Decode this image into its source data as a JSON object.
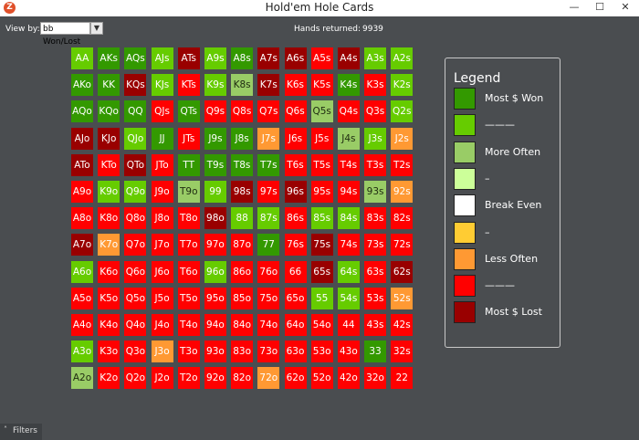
{
  "window": {
    "title": "Hold'em Hole Cards",
    "app_icon": "Z",
    "min_glyph": "—",
    "max_glyph": "☐",
    "close_glyph": "✕"
  },
  "toolbar": {
    "view_by_label": "View by:",
    "view_by_value": "bb Won/Lost",
    "view_by_arrow": "▼",
    "hands_label": "Hands returned:",
    "hands_value": "9939"
  },
  "legend": {
    "title": "Legend",
    "items": [
      {
        "label": "Most $ Won",
        "color": "#339900"
      },
      {
        "label": "———",
        "color": "#66cc00"
      },
      {
        "label": "More Often",
        "color": "#99cc66"
      },
      {
        "label": "–",
        "color": "#ccff99"
      },
      {
        "label": "Break Even",
        "color": "#ffffff"
      },
      {
        "label": "–",
        "color": "#ffcc33"
      },
      {
        "label": "Less Often",
        "color": "#ff9933"
      },
      {
        "label": "———",
        "color": "#ff0000"
      },
      {
        "label": "Most $ Lost",
        "color": "#990000"
      }
    ]
  },
  "palette": {
    "DG": "#339900",
    "G": "#66cc00",
    "LG": "#99cc66",
    "O": "#ff9933",
    "R": "#ff0000",
    "DR": "#990000"
  },
  "grid": [
    [
      [
        "AA",
        "G"
      ],
      [
        "AKs",
        "DG"
      ],
      [
        "AQs",
        "DG"
      ],
      [
        "AJs",
        "G"
      ],
      [
        "ATs",
        "DR"
      ],
      [
        "A9s",
        "G"
      ],
      [
        "A8s",
        "DG"
      ],
      [
        "A7s",
        "DR"
      ],
      [
        "A6s",
        "DR"
      ],
      [
        "A5s",
        "R"
      ],
      [
        "A4s",
        "DR"
      ],
      [
        "A3s",
        "G"
      ],
      [
        "A2s",
        "G"
      ]
    ],
    [
      [
        "AKo",
        "DG"
      ],
      [
        "KK",
        "DG"
      ],
      [
        "KQs",
        "DR"
      ],
      [
        "KJs",
        "G"
      ],
      [
        "KTs",
        "R"
      ],
      [
        "K9s",
        "G"
      ],
      [
        "K8s",
        "LG"
      ],
      [
        "K7s",
        "DR"
      ],
      [
        "K6s",
        "R"
      ],
      [
        "K5s",
        "R"
      ],
      [
        "K4s",
        "DG"
      ],
      [
        "K3s",
        "R"
      ],
      [
        "K2s",
        "G"
      ]
    ],
    [
      [
        "AQo",
        "DG"
      ],
      [
        "KQo",
        "DG"
      ],
      [
        "QQ",
        "DG"
      ],
      [
        "QJs",
        "R"
      ],
      [
        "QTs",
        "DG"
      ],
      [
        "Q9s",
        "R"
      ],
      [
        "Q8s",
        "R"
      ],
      [
        "Q7s",
        "R"
      ],
      [
        "Q6s",
        "R"
      ],
      [
        "Q5s",
        "LG"
      ],
      [
        "Q4s",
        "R"
      ],
      [
        "Q3s",
        "R"
      ],
      [
        "Q2s",
        "G"
      ]
    ],
    [
      [
        "AJo",
        "DR"
      ],
      [
        "KJo",
        "DR"
      ],
      [
        "QJo",
        "G"
      ],
      [
        "JJ",
        "DG"
      ],
      [
        "JTs",
        "R"
      ],
      [
        "J9s",
        "DG"
      ],
      [
        "J8s",
        "DG"
      ],
      [
        "J7s",
        "O"
      ],
      [
        "J6s",
        "R"
      ],
      [
        "J5s",
        "R"
      ],
      [
        "J4s",
        "LG"
      ],
      [
        "J3s",
        "G"
      ],
      [
        "J2s",
        "O"
      ]
    ],
    [
      [
        "ATo",
        "DR"
      ],
      [
        "KTo",
        "R"
      ],
      [
        "QTo",
        "DR"
      ],
      [
        "JTo",
        "R"
      ],
      [
        "TT",
        "DG"
      ],
      [
        "T9s",
        "DG"
      ],
      [
        "T8s",
        "DG"
      ],
      [
        "T7s",
        "DG"
      ],
      [
        "T6s",
        "R"
      ],
      [
        "T5s",
        "R"
      ],
      [
        "T4s",
        "R"
      ],
      [
        "T3s",
        "R"
      ],
      [
        "T2s",
        "R"
      ]
    ],
    [
      [
        "A9o",
        "R"
      ],
      [
        "K9o",
        "G"
      ],
      [
        "Q9o",
        "G"
      ],
      [
        "J9o",
        "R"
      ],
      [
        "T9o",
        "LG"
      ],
      [
        "99",
        "G"
      ],
      [
        "98s",
        "DR"
      ],
      [
        "97s",
        "R"
      ],
      [
        "96s",
        "DR"
      ],
      [
        "95s",
        "R"
      ],
      [
        "94s",
        "R"
      ],
      [
        "93s",
        "LG"
      ],
      [
        "92s",
        "O"
      ]
    ],
    [
      [
        "A8o",
        "R"
      ],
      [
        "K8o",
        "R"
      ],
      [
        "Q8o",
        "R"
      ],
      [
        "J8o",
        "R"
      ],
      [
        "T8o",
        "R"
      ],
      [
        "98o",
        "DR"
      ],
      [
        "88",
        "G"
      ],
      [
        "87s",
        "G"
      ],
      [
        "86s",
        "R"
      ],
      [
        "85s",
        "G"
      ],
      [
        "84s",
        "G"
      ],
      [
        "83s",
        "R"
      ],
      [
        "82s",
        "R"
      ]
    ],
    [
      [
        "A7o",
        "DR"
      ],
      [
        "K7o",
        "O"
      ],
      [
        "Q7o",
        "R"
      ],
      [
        "J7o",
        "R"
      ],
      [
        "T7o",
        "R"
      ],
      [
        "97o",
        "R"
      ],
      [
        "87o",
        "R"
      ],
      [
        "77",
        "DG"
      ],
      [
        "76s",
        "R"
      ],
      [
        "75s",
        "DR"
      ],
      [
        "74s",
        "R"
      ],
      [
        "73s",
        "R"
      ],
      [
        "72s",
        "R"
      ]
    ],
    [
      [
        "A6o",
        "G"
      ],
      [
        "K6o",
        "R"
      ],
      [
        "Q6o",
        "R"
      ],
      [
        "J6o",
        "R"
      ],
      [
        "T6o",
        "R"
      ],
      [
        "96o",
        "G"
      ],
      [
        "86o",
        "R"
      ],
      [
        "76o",
        "R"
      ],
      [
        "66",
        "R"
      ],
      [
        "65s",
        "DR"
      ],
      [
        "64s",
        "G"
      ],
      [
        "63s",
        "R"
      ],
      [
        "62s",
        "DR"
      ]
    ],
    [
      [
        "A5o",
        "R"
      ],
      [
        "K5o",
        "R"
      ],
      [
        "Q5o",
        "R"
      ],
      [
        "J5o",
        "R"
      ],
      [
        "T5o",
        "R"
      ],
      [
        "95o",
        "R"
      ],
      [
        "85o",
        "R"
      ],
      [
        "75o",
        "R"
      ],
      [
        "65o",
        "R"
      ],
      [
        "55",
        "G"
      ],
      [
        "54s",
        "G"
      ],
      [
        "53s",
        "R"
      ],
      [
        "52s",
        "O"
      ]
    ],
    [
      [
        "A4o",
        "R"
      ],
      [
        "K4o",
        "R"
      ],
      [
        "Q4o",
        "R"
      ],
      [
        "J4o",
        "R"
      ],
      [
        "T4o",
        "R"
      ],
      [
        "94o",
        "R"
      ],
      [
        "84o",
        "R"
      ],
      [
        "74o",
        "R"
      ],
      [
        "64o",
        "R"
      ],
      [
        "54o",
        "R"
      ],
      [
        "44",
        "R"
      ],
      [
        "43s",
        "R"
      ],
      [
        "42s",
        "R"
      ]
    ],
    [
      [
        "A3o",
        "G"
      ],
      [
        "K3o",
        "R"
      ],
      [
        "Q3o",
        "R"
      ],
      [
        "J3o",
        "O"
      ],
      [
        "T3o",
        "R"
      ],
      [
        "93o",
        "R"
      ],
      [
        "83o",
        "R"
      ],
      [
        "73o",
        "R"
      ],
      [
        "63o",
        "R"
      ],
      [
        "53o",
        "R"
      ],
      [
        "43o",
        "R"
      ],
      [
        "33",
        "DG"
      ],
      [
        "32s",
        "R"
      ]
    ],
    [
      [
        "A2o",
        "LG"
      ],
      [
        "K2o",
        "R"
      ],
      [
        "Q2o",
        "R"
      ],
      [
        "J2o",
        "R"
      ],
      [
        "T2o",
        "R"
      ],
      [
        "92o",
        "R"
      ],
      [
        "82o",
        "R"
      ],
      [
        "72o",
        "O"
      ],
      [
        "62o",
        "R"
      ],
      [
        "52o",
        "R"
      ],
      [
        "42o",
        "R"
      ],
      [
        "32o",
        "R"
      ],
      [
        "22",
        "R"
      ]
    ]
  ],
  "filters": {
    "chevron": "˄",
    "label": "Filters"
  }
}
